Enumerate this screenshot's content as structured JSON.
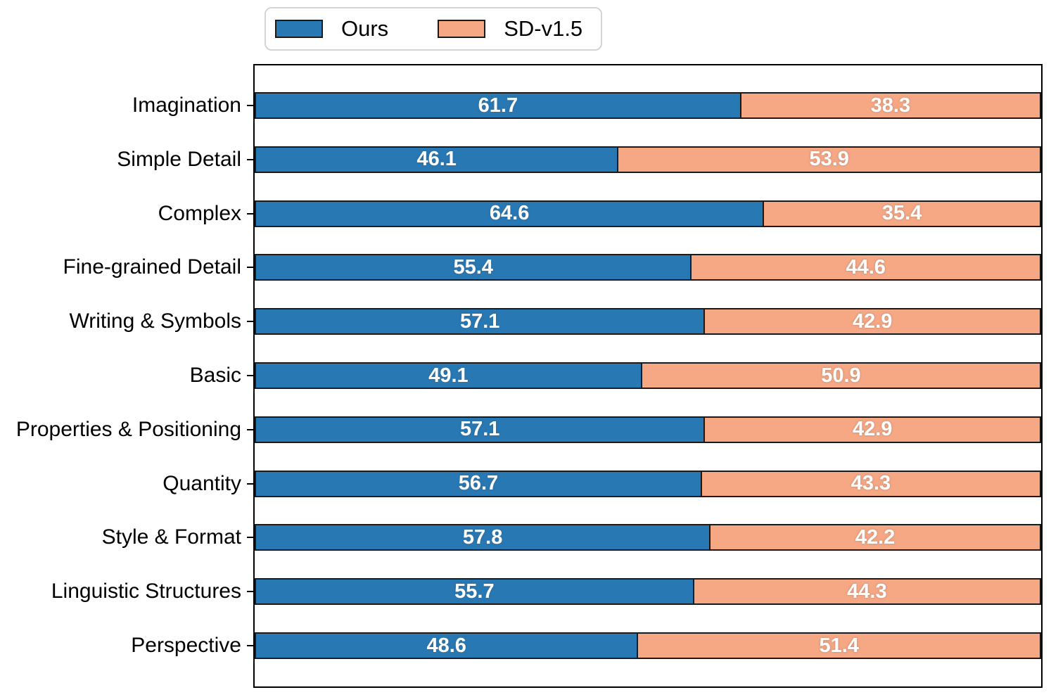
{
  "chart_data": {
    "type": "bar",
    "orientation": "horizontal",
    "stacked": true,
    "title": "",
    "xlabel": "",
    "ylabel": "",
    "categories": [
      "Imagination",
      "Simple Detail",
      "Complex",
      "Fine-grained Detail",
      "Writing & Symbols",
      "Basic",
      "Properties & Positioning",
      "Quantity",
      "Style & Format",
      "Linguistic Structures",
      "Perspective"
    ],
    "series": [
      {
        "name": "Ours",
        "color": "#2878b4",
        "values": [
          61.7,
          46.1,
          64.6,
          55.4,
          57.1,
          49.1,
          57.1,
          56.7,
          57.8,
          55.7,
          48.6
        ]
      },
      {
        "name": "SD-v1.5",
        "color": "#f6a885",
        "values": [
          38.3,
          53.9,
          35.4,
          44.6,
          42.9,
          50.9,
          42.9,
          43.3,
          42.2,
          44.3,
          51.4
        ]
      }
    ],
    "xlim": [
      0,
      100
    ],
    "grid": false,
    "legend_position": "top-left-outside",
    "value_label_color": "#ffffff",
    "bar_edge_color": "#1a1a1a"
  },
  "styles": {
    "background": "#ffffff",
    "axis_border_color": "#000000",
    "legend_border_color": "#d4d4d4",
    "category_label_color": "#000000"
  }
}
